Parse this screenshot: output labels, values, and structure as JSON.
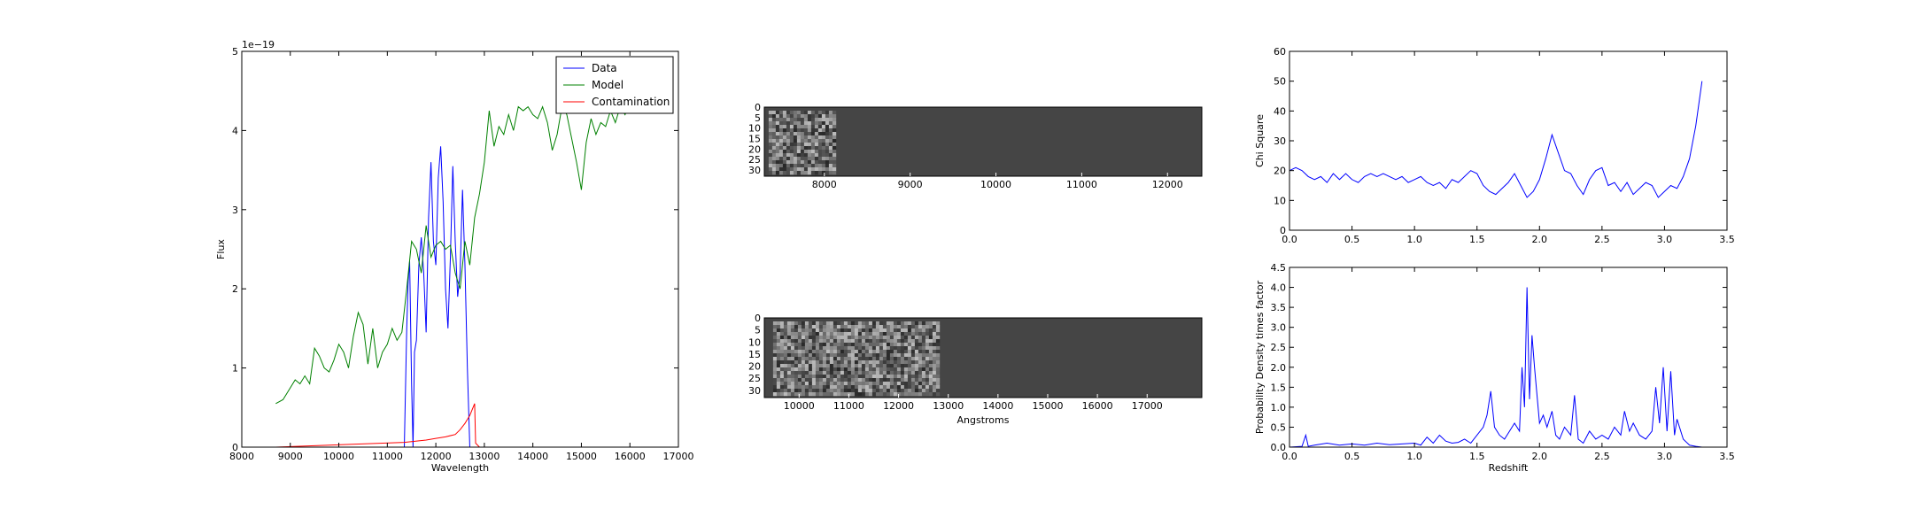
{
  "chart_data": [
    {
      "id": "spectrum",
      "type": "line",
      "xlabel": "Wavelength",
      "ylabel": "Flux",
      "offset_text": "1e−19",
      "xlim": [
        8000,
        17000
      ],
      "ylim": [
        0,
        5
      ],
      "xticks": [
        8000,
        9000,
        10000,
        11000,
        12000,
        13000,
        14000,
        15000,
        16000,
        17000
      ],
      "yticks": [
        0,
        1,
        2,
        3,
        4,
        5
      ],
      "legend": {
        "placement": "top-right",
        "entries": [
          "Data",
          "Model",
          "Contamination"
        ]
      },
      "colors": {
        "Data": "#0000ff",
        "Model": "#008000",
        "Contamination": "#ff0000"
      },
      "series": [
        {
          "name": "Data",
          "x": [
            8700,
            11350,
            11400,
            11430,
            11460,
            11500,
            11530,
            11560,
            11600,
            11650,
            11700,
            11750,
            11800,
            11850,
            11900,
            11950,
            12000,
            12050,
            12100,
            12150,
            12200,
            12250,
            12300,
            12350,
            12400,
            12450,
            12500,
            12550,
            12600,
            12650,
            12700,
            12730,
            12760,
            12800,
            16300
          ],
          "y": [
            0,
            0,
            1.5,
            2.1,
            2.35,
            0.8,
            0,
            1.2,
            1.35,
            2.3,
            2.65,
            2.2,
            1.45,
            2.9,
            3.6,
            2.6,
            2.3,
            3.4,
            3.8,
            3.1,
            2.0,
            1.5,
            2.4,
            3.55,
            2.6,
            1.9,
            2.2,
            3.25,
            2.3,
            1.0,
            0,
            0,
            0,
            0,
            0
          ]
        },
        {
          "name": "Model",
          "x": [
            8700,
            8850,
            9000,
            9100,
            9200,
            9300,
            9400,
            9500,
            9600,
            9700,
            9800,
            9900,
            10000,
            10100,
            10200,
            10300,
            10400,
            10500,
            10600,
            10700,
            10800,
            10900,
            11000,
            11100,
            11200,
            11300,
            11400,
            11500,
            11600,
            11700,
            11800,
            11900,
            12000,
            12100,
            12200,
            12300,
            12400,
            12500,
            12600,
            12700,
            12800,
            12900,
            13000,
            13100,
            13200,
            13300,
            13400,
            13500,
            13600,
            13700,
            13800,
            13900,
            14000,
            14100,
            14200,
            14300,
            14400,
            14500,
            14600,
            14700,
            14800,
            14900,
            15000,
            15100,
            15200,
            15300,
            15400,
            15500,
            15600,
            15700,
            15800,
            15900,
            16000,
            16100,
            16200,
            16300
          ],
          "y": [
            0.55,
            0.6,
            0.75,
            0.85,
            0.8,
            0.9,
            0.8,
            1.25,
            1.15,
            1.0,
            0.95,
            1.1,
            1.3,
            1.2,
            1.0,
            1.4,
            1.7,
            1.55,
            1.05,
            1.5,
            1.0,
            1.2,
            1.3,
            1.5,
            1.35,
            1.45,
            2.0,
            2.6,
            2.5,
            2.2,
            2.8,
            2.4,
            2.55,
            2.6,
            2.5,
            2.55,
            2.2,
            2.0,
            2.6,
            2.3,
            2.9,
            3.2,
            3.6,
            4.25,
            3.8,
            4.05,
            3.95,
            4.2,
            4.0,
            4.3,
            4.25,
            4.3,
            4.2,
            4.15,
            4.3,
            4.1,
            3.75,
            3.95,
            4.3,
            4.2,
            3.9,
            3.6,
            3.25,
            3.85,
            4.15,
            3.95,
            4.1,
            4.05,
            4.25,
            4.1,
            4.3,
            4.2,
            4.35,
            4.25,
            4.4,
            4.3
          ]
        },
        {
          "name": "Contamination",
          "x": [
            8700,
            11350,
            11800,
            12000,
            12200,
            12400,
            12500,
            12600,
            12700,
            12800,
            12820,
            12900,
            16300
          ],
          "y": [
            0,
            0.06,
            0.09,
            0.11,
            0.13,
            0.16,
            0.22,
            0.3,
            0.4,
            0.55,
            0.05,
            0,
            0
          ]
        }
      ]
    },
    {
      "id": "spectrum-image-top",
      "type": "heatmap",
      "xlim": [
        7300,
        12400
      ],
      "ylim": [
        0,
        33
      ],
      "xticks": [
        8000,
        9000,
        10000,
        11000,
        12000
      ],
      "yticks": [
        0,
        5,
        10,
        15,
        20,
        25,
        30
      ],
      "xlabel": ""
    },
    {
      "id": "spectrum-image-bottom",
      "type": "heatmap",
      "xlim": [
        9300,
        18100
      ],
      "ylim": [
        0,
        33
      ],
      "xticks": [
        10000,
        11000,
        12000,
        13000,
        14000,
        15000,
        16000,
        17000
      ],
      "yticks": [
        0,
        5,
        10,
        15,
        20,
        25,
        30
      ],
      "xlabel": "Angstroms"
    },
    {
      "id": "chi-square",
      "type": "line",
      "xlabel": "",
      "ylabel": "Chi Square",
      "xlim": [
        0,
        3.5
      ],
      "ylim": [
        0,
        60
      ],
      "xticks": [
        "0.0",
        "0.5",
        "1.0",
        "1.5",
        "2.0",
        "2.5",
        "3.0",
        "3.5"
      ],
      "yticks": [
        0,
        10,
        20,
        30,
        40,
        50,
        60
      ],
      "color": "#0000ff",
      "series": [
        {
          "x": [
            0.0,
            0.05,
            0.1,
            0.15,
            0.2,
            0.25,
            0.3,
            0.35,
            0.4,
            0.45,
            0.5,
            0.55,
            0.6,
            0.65,
            0.7,
            0.75,
            0.8,
            0.85,
            0.9,
            0.95,
            1.0,
            1.05,
            1.1,
            1.15,
            1.2,
            1.25,
            1.3,
            1.35,
            1.4,
            1.45,
            1.5,
            1.55,
            1.6,
            1.65,
            1.7,
            1.75,
            1.8,
            1.85,
            1.9,
            1.95,
            2.0,
            2.05,
            2.1,
            2.15,
            2.2,
            2.25,
            2.3,
            2.35,
            2.4,
            2.45,
            2.5,
            2.55,
            2.6,
            2.65,
            2.7,
            2.75,
            2.8,
            2.85,
            2.9,
            2.95,
            3.0,
            3.05,
            3.1,
            3.15,
            3.2,
            3.25,
            3.3
          ],
          "y": [
            20,
            21,
            20,
            18,
            17,
            18,
            16,
            19,
            17,
            19,
            17,
            16,
            18,
            19,
            18,
            19,
            18,
            17,
            18,
            16,
            17,
            18,
            16,
            15,
            16,
            14,
            17,
            16,
            18,
            20,
            19,
            15,
            13,
            12,
            14,
            16,
            19,
            15,
            11,
            13,
            17,
            24,
            32,
            26,
            20,
            19,
            15,
            12,
            17,
            20,
            21,
            15,
            16,
            13,
            16,
            12,
            14,
            16,
            15,
            11,
            13,
            15,
            14,
            18,
            24,
            35,
            50
          ]
        }
      ]
    },
    {
      "id": "probability",
      "type": "line",
      "xlabel": "Redshift",
      "ylabel": "Probability Density times factor",
      "xlim": [
        0,
        3.5
      ],
      "ylim": [
        0,
        4.5
      ],
      "xticks": [
        "0.0",
        "0.5",
        "1.0",
        "1.5",
        "2.0",
        "2.5",
        "3.0",
        "3.5"
      ],
      "yticks": [
        "0.0",
        "0.5",
        "1.0",
        "1.5",
        "2.0",
        "2.5",
        "3.0",
        "3.5",
        "4.0",
        "4.5"
      ],
      "color": "#0000ff",
      "series": [
        {
          "x": [
            0.0,
            0.1,
            0.13,
            0.15,
            0.2,
            0.3,
            0.4,
            0.5,
            0.6,
            0.7,
            0.8,
            0.9,
            1.0,
            1.05,
            1.1,
            1.15,
            1.2,
            1.25,
            1.3,
            1.35,
            1.4,
            1.45,
            1.5,
            1.55,
            1.58,
            1.61,
            1.64,
            1.68,
            1.72,
            1.76,
            1.8,
            1.84,
            1.86,
            1.88,
            1.9,
            1.92,
            1.94,
            1.96,
            2.0,
            2.03,
            2.06,
            2.1,
            2.13,
            2.16,
            2.2,
            2.25,
            2.28,
            2.31,
            2.35,
            2.4,
            2.45,
            2.5,
            2.55,
            2.6,
            2.65,
            2.68,
            2.72,
            2.75,
            2.8,
            2.85,
            2.9,
            2.93,
            2.96,
            2.99,
            3.02,
            3.05,
            3.08,
            3.1,
            3.15,
            3.2,
            3.25,
            3.3
          ],
          "y": [
            0,
            0.02,
            0.3,
            0.02,
            0.05,
            0.1,
            0.05,
            0.08,
            0.05,
            0.1,
            0.06,
            0.08,
            0.1,
            0.05,
            0.25,
            0.1,
            0.3,
            0.15,
            0.1,
            0.12,
            0.2,
            0.1,
            0.3,
            0.5,
            0.8,
            1.4,
            0.5,
            0.3,
            0.2,
            0.4,
            0.6,
            0.4,
            2.0,
            1.0,
            4.0,
            1.2,
            2.8,
            2.0,
            0.6,
            0.8,
            0.5,
            0.9,
            0.3,
            0.2,
            0.5,
            0.3,
            1.3,
            0.2,
            0.1,
            0.4,
            0.2,
            0.3,
            0.2,
            0.5,
            0.3,
            0.9,
            0.4,
            0.6,
            0.3,
            0.2,
            0.4,
            1.5,
            0.6,
            2.0,
            0.4,
            1.9,
            0.3,
            0.7,
            0.2,
            0.05,
            0.02,
            0
          ]
        }
      ]
    }
  ]
}
